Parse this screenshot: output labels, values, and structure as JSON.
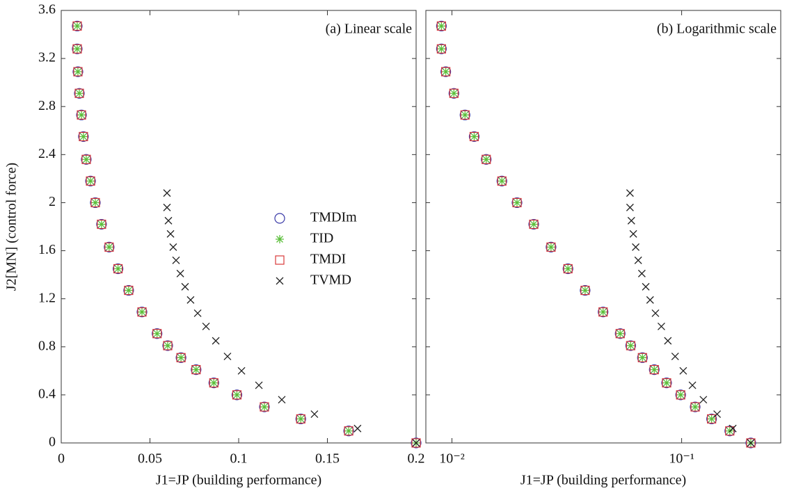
{
  "chart_data": [
    {
      "type": "scatter",
      "annotation": "(a) Linear scale",
      "xlabel": "J1=JP  (building performance)",
      "ylabel": "J2[MN]  (control force)",
      "xlim": [
        0,
        0.2
      ],
      "xticks": [
        0,
        0.05,
        0.1,
        0.15,
        0.2
      ],
      "ylim": [
        0,
        3.6
      ],
      "yticks": [
        0,
        0.4,
        0.8,
        1.2,
        1.6,
        2,
        2.4,
        2.8,
        3.2,
        3.6
      ],
      "yticklabels": [
        {
          "value": 0,
          "label": "0"
        },
        {
          "value": 0.4,
          "label": "0.4"
        },
        {
          "value": 0.8,
          "label": "0.8"
        },
        {
          "value": 1.2,
          "label": "1.2"
        },
        {
          "value": 1.6,
          "label": "1.6"
        },
        {
          "value": 2,
          "label": "2"
        },
        {
          "value": 2.4,
          "label": "2.4"
        },
        {
          "value": 2.8,
          "label": "2.8"
        },
        {
          "value": 3.2,
          "label": "3.2"
        },
        {
          "value": 3.6,
          "label": "3.6"
        }
      ],
      "legend": "center",
      "series": [
        {
          "name": "TMDIm",
          "color": "#3a3aa8",
          "marker": "circle",
          "x": [
            0.009,
            0.009,
            0.0094,
            0.0102,
            0.0114,
            0.0125,
            0.0141,
            0.0165,
            0.0192,
            0.0227,
            0.027,
            0.032,
            0.038,
            0.0455,
            0.054,
            0.06,
            0.0675,
            0.076,
            0.086,
            0.099,
            0.1145,
            0.135,
            0.162,
            0.2
          ],
          "values": [
            3.47,
            3.28,
            3.09,
            2.91,
            2.73,
            2.55,
            2.36,
            2.18,
            2.0,
            1.82,
            1.63,
            1.45,
            1.27,
            1.09,
            0.91,
            0.81,
            0.71,
            0.61,
            0.5,
            0.4,
            0.3,
            0.2,
            0.1,
            0
          ]
        },
        {
          "name": "TID",
          "color": "#5cbf3c",
          "marker": "star",
          "x": [
            0.009,
            0.009,
            0.0094,
            0.0102,
            0.0114,
            0.0125,
            0.0141,
            0.0165,
            0.0192,
            0.0227,
            0.027,
            0.032,
            0.038,
            0.0455,
            0.054,
            0.06,
            0.0675,
            0.076,
            0.086,
            0.099,
            0.1145,
            0.135,
            0.162,
            0.2
          ],
          "values": [
            3.47,
            3.28,
            3.09,
            2.91,
            2.73,
            2.55,
            2.36,
            2.18,
            2.0,
            1.82,
            1.63,
            1.45,
            1.27,
            1.09,
            0.91,
            0.81,
            0.71,
            0.61,
            0.5,
            0.4,
            0.3,
            0.2,
            0.1,
            0
          ]
        },
        {
          "name": "TMDI",
          "color": "#d83a3a",
          "marker": "square",
          "x": [
            0.009,
            0.009,
            0.0094,
            0.0102,
            0.0114,
            0.0125,
            0.0141,
            0.0165,
            0.0192,
            0.0227,
            0.027,
            0.032,
            0.038,
            0.0455,
            0.054,
            0.06,
            0.0675,
            0.076,
            0.086,
            0.099,
            0.1145,
            0.135,
            0.162,
            0.2
          ],
          "values": [
            3.47,
            3.28,
            3.09,
            2.91,
            2.73,
            2.55,
            2.36,
            2.18,
            2.0,
            1.82,
            1.63,
            1.45,
            1.27,
            1.09,
            0.91,
            0.81,
            0.71,
            0.61,
            0.5,
            0.4,
            0.3,
            0.2,
            0.1,
            0
          ]
        },
        {
          "name": "TVMD",
          "color": "#222222",
          "marker": "x",
          "x": [
            0.0596,
            0.0596,
            0.0604,
            0.0616,
            0.0631,
            0.0647,
            0.0671,
            0.0698,
            0.0729,
            0.0769,
            0.0816,
            0.0871,
            0.0937,
            0.1016,
            0.1114,
            0.1243,
            0.1427,
            0.167,
            0.2
          ],
          "values": [
            2.08,
            1.96,
            1.85,
            1.74,
            1.63,
            1.52,
            1.41,
            1.3,
            1.19,
            1.08,
            0.97,
            0.85,
            0.72,
            0.6,
            0.48,
            0.36,
            0.24,
            0.12,
            0
          ]
        }
      ]
    },
    {
      "type": "scatter",
      "annotation": "(b) Logarithmic scale",
      "xlabel": "J1=JP  (building performance)",
      "xscale": "log",
      "xlim": [
        0.0077,
        0.27
      ],
      "xticks": [
        {
          "value": 0.01,
          "label": "10⁻²"
        },
        {
          "value": 0.1,
          "label": "10⁻¹"
        }
      ],
      "ylim": [
        0,
        3.6
      ],
      "yticks": [
        0,
        0.4,
        0.8,
        1.2,
        1.6,
        2,
        2.4,
        2.8,
        3.2,
        3.6
      ],
      "series": [
        {
          "color": "#3a3aa8",
          "marker": "circle",
          "x": [
            0.009,
            0.009,
            0.0094,
            0.0102,
            0.0114,
            0.0125,
            0.0141,
            0.0165,
            0.0192,
            0.0227,
            0.027,
            0.032,
            0.038,
            0.0455,
            0.054,
            0.06,
            0.0675,
            0.076,
            0.086,
            0.099,
            0.1145,
            0.135,
            0.162,
            0.2
          ],
          "values": [
            3.47,
            3.28,
            3.09,
            2.91,
            2.73,
            2.55,
            2.36,
            2.18,
            2.0,
            1.82,
            1.63,
            1.45,
            1.27,
            1.09,
            0.91,
            0.81,
            0.71,
            0.61,
            0.5,
            0.4,
            0.3,
            0.2,
            0.1,
            0
          ]
        },
        {
          "color": "#5cbf3c",
          "marker": "star",
          "x": [
            0.009,
            0.009,
            0.0094,
            0.0102,
            0.0114,
            0.0125,
            0.0141,
            0.0165,
            0.0192,
            0.0227,
            0.027,
            0.032,
            0.038,
            0.0455,
            0.054,
            0.06,
            0.0675,
            0.076,
            0.086,
            0.099,
            0.1145,
            0.135,
            0.162,
            0.2
          ],
          "values": [
            3.47,
            3.28,
            3.09,
            2.91,
            2.73,
            2.55,
            2.36,
            2.18,
            2.0,
            1.82,
            1.63,
            1.45,
            1.27,
            1.09,
            0.91,
            0.81,
            0.71,
            0.61,
            0.5,
            0.4,
            0.3,
            0.2,
            0.1,
            0
          ]
        },
        {
          "color": "#d83a3a",
          "marker": "square",
          "x": [
            0.009,
            0.009,
            0.0094,
            0.0102,
            0.0114,
            0.0125,
            0.0141,
            0.0165,
            0.0192,
            0.0227,
            0.027,
            0.032,
            0.038,
            0.0455,
            0.054,
            0.06,
            0.0675,
            0.076,
            0.086,
            0.099,
            0.1145,
            0.135,
            0.162,
            0.2
          ],
          "values": [
            3.47,
            3.28,
            3.09,
            2.91,
            2.73,
            2.55,
            2.36,
            2.18,
            2.0,
            1.82,
            1.63,
            1.45,
            1.27,
            1.09,
            0.91,
            0.81,
            0.71,
            0.61,
            0.5,
            0.4,
            0.3,
            0.2,
            0.1,
            0
          ]
        },
        {
          "color": "#222222",
          "marker": "x",
          "x": [
            0.0596,
            0.0596,
            0.0604,
            0.0616,
            0.0631,
            0.0647,
            0.0671,
            0.0698,
            0.0729,
            0.0769,
            0.0816,
            0.0871,
            0.0937,
            0.1016,
            0.1114,
            0.1243,
            0.1427,
            0.167,
            0.2
          ],
          "values": [
            2.08,
            1.96,
            1.85,
            1.74,
            1.63,
            1.52,
            1.41,
            1.3,
            1.19,
            1.08,
            0.97,
            0.85,
            0.72,
            0.6,
            0.48,
            0.36,
            0.24,
            0.12,
            0
          ]
        }
      ]
    }
  ]
}
